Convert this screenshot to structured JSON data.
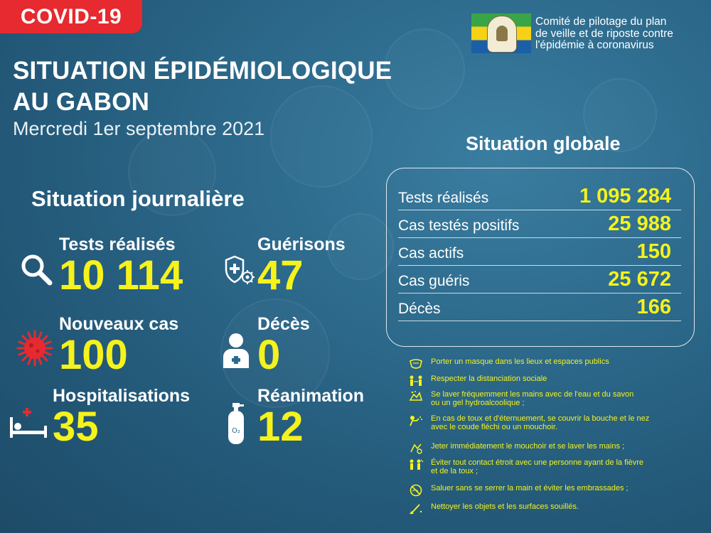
{
  "badge": "COVID-19",
  "committee": {
    "lines": [
      "Comité de pilotage du plan",
      "de veille et de riposte contre",
      "l'épidémie à coronavirus"
    ]
  },
  "title": {
    "line1": "SITUATION ÉPIDÉMIOLOGIQUE",
    "line2": "AU GABON",
    "date": "Mercredi 1er septembre 2021"
  },
  "daily": {
    "heading": "Situation journalière",
    "tests": {
      "label": "Tests réalisés",
      "value": "10 114",
      "icon": "magnifier-icon"
    },
    "recoveries": {
      "label": "Guérisons",
      "value": "47",
      "icon": "shield-virus-icon"
    },
    "new_cases": {
      "label": "Nouveaux cas",
      "value": "100",
      "icon": "virus-icon"
    },
    "deaths": {
      "label": "Décès",
      "value": "0",
      "icon": "person-icon"
    },
    "hospitalisations": {
      "label": "Hospitalisations",
      "value": "35",
      "icon": "hospital-bed-icon"
    },
    "icu": {
      "label": "Réanimation",
      "value": "12",
      "icon": "oxygen-tank-icon"
    }
  },
  "global": {
    "heading": "Situation globale",
    "rows": [
      {
        "label": "Tests réalisés",
        "value": "1 095 284"
      },
      {
        "label": "Cas testés positifs",
        "value": "25 988"
      },
      {
        "label": "Cas actifs",
        "value": "150"
      },
      {
        "label": "Cas guéris",
        "value": "25 672"
      },
      {
        "label": "Décès",
        "value": "166"
      }
    ]
  },
  "tips": [
    {
      "icon": "mask-icon",
      "text": "Porter un masque dans les lieux et espaces publics"
    },
    {
      "icon": "distance-icon",
      "text": "Respecter la distanciation sociale"
    },
    {
      "icon": "handwash-icon",
      "text": "Se laver fréquemment les mains avec de l'eau et du savon\n ou un gel hydroalcoolique ;"
    },
    {
      "icon": "cough-icon",
      "text": "En cas de toux et d'éternuement, se couvrir la bouche et le nez\n avec le coude fléchi ou un mouchoir."
    },
    {
      "icon": "tissue-icon",
      "text": "Jeter immédiatement le mouchoir et se laver les mains ;"
    },
    {
      "icon": "avoid-contact-icon",
      "text": "Éviter tout contact étroit avec une personne ayant de la fièvre\n et de la toux ;"
    },
    {
      "icon": "no-handshake-icon",
      "text": "Saluer sans se serrer la main et éviter les embrassades ;"
    },
    {
      "icon": "cleaning-icon",
      "text": "Nettoyer les objets et les surfaces souillés."
    }
  ],
  "colors": {
    "accent_red": "#e62a2f",
    "value_yellow": "#f5f21c",
    "background": "#2d6a8c"
  }
}
